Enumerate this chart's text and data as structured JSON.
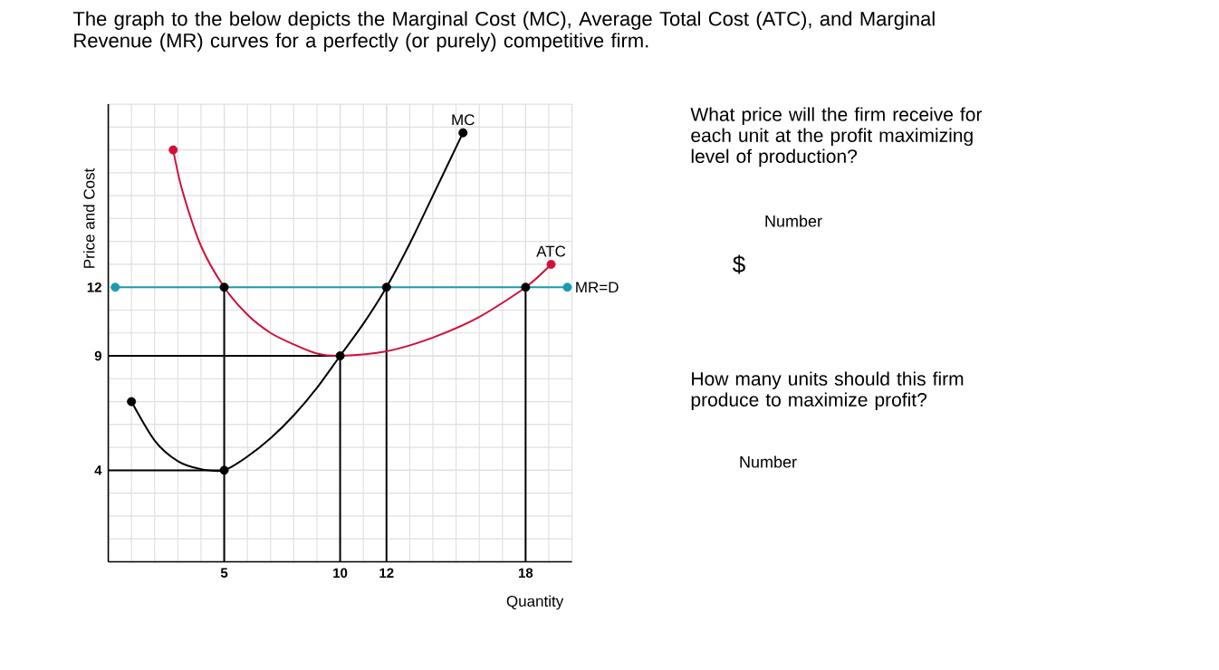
{
  "chart_data": {
    "type": "line",
    "title": "The graph to the below depicts the Marginal Cost (MC), Average Total Cost (ATC), and Marginal Revenue (MR) curves for a perfectly (or purely) competitive firm.",
    "xlabel": "Quantity",
    "ylabel": "Price and Cost",
    "xlim": [
      0,
      20
    ],
    "ylim": [
      0,
      20
    ],
    "xticks": [
      5,
      10,
      12,
      18
    ],
    "yticks": [
      4,
      9,
      12
    ],
    "grid": true,
    "marker": "none",
    "annotations": [
      "What price will the firm receive for each unit at the profit maximizing level of production?",
      "Number",
      "$",
      "How many units should this firm produce to maximize profit?",
      "Number"
    ],
    "series": [
      {
        "color": "#000000",
        "x": [
          5,
          5
        ],
        "values": [
          0,
          12
        ]
      },
      {
        "color": "#000000",
        "x": [
          0,
          5
        ],
        "values": [
          4,
          4
        ]
      },
      {
        "color": "#000000",
        "x": [
          10,
          10
        ],
        "values": [
          0,
          9
        ]
      },
      {
        "color": "#000000",
        "x": [
          0,
          10
        ],
        "values": [
          9,
          9
        ]
      },
      {
        "color": "#000000",
        "x": [
          12,
          12
        ],
        "values": [
          0,
          12
        ]
      },
      {
        "color": "#000000",
        "x": [
          18,
          18
        ],
        "values": [
          0,
          12
        ]
      },
      {
        "name": "MR=D",
        "color": "#1a9bb0",
        "x": [
          0.3,
          19.8
        ],
        "values": [
          12,
          12
        ]
      },
      {
        "name": "ATC",
        "color": "#d0103a",
        "x": [
          2.8,
          3.2,
          4,
          5,
          6,
          7,
          8,
          9,
          10,
          12,
          14,
          16,
          18,
          19.1
        ],
        "values": [
          18,
          16.2,
          13.8,
          12,
          10.8,
          10,
          9.5,
          9.1,
          9,
          9.2,
          9.8,
          10.7,
          12,
          13
        ]
      },
      {
        "name": "MC",
        "color": "#000000",
        "x": [
          1,
          2,
          3,
          4,
          5,
          6,
          7,
          8,
          9,
          10,
          11,
          12,
          13,
          14,
          15.3
        ],
        "values": [
          7,
          5.3,
          4.4,
          4.05,
          4,
          4.6,
          5.4,
          6.4,
          7.6,
          9,
          10.4,
          12,
          13.9,
          16,
          18.75
        ]
      },
      {
        "type": "scatter",
        "marker": "circle",
        "color": "#1a9bb0",
        "x": [
          0.3,
          19.8
        ],
        "values": [
          12,
          12
        ]
      },
      {
        "type": "scatter",
        "marker": "circle",
        "color": "#d0103a",
        "x": [
          2.8,
          19.1
        ],
        "values": [
          18,
          13
        ]
      },
      {
        "type": "scatter",
        "marker": "circle",
        "color": "#000000",
        "x": [
          1,
          15.3
        ],
        "values": [
          7,
          18.75
        ]
      },
      {
        "type": "scatter",
        "marker": "circle",
        "color": "#000000",
        "x": [
          5,
          5,
          10,
          12,
          18
        ],
        "values": [
          12,
          4,
          9,
          12,
          12
        ]
      }
    ]
  }
}
